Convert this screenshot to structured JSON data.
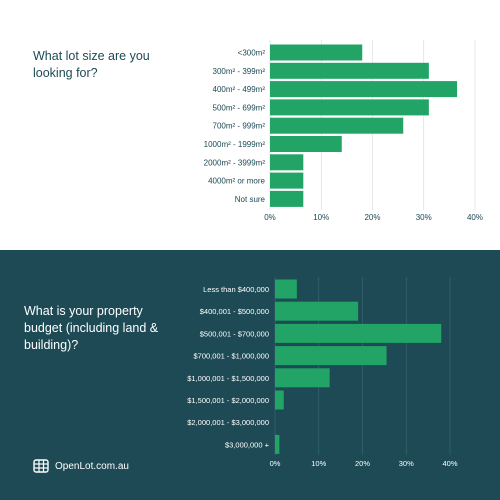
{
  "colors": {
    "bar": "#22a466",
    "dark_bg": "#1d4a55",
    "light_text": "#1d4a55",
    "grid_light": "#d8d8d8",
    "grid_dark": "#3d6a75"
  },
  "question1": "What lot size are you looking for?",
  "question2": "What is your property budget (including land & building)?",
  "brand": {
    "name": "OpenLot.com.au",
    "icon": "grid-logo-icon"
  },
  "chart_data": [
    {
      "type": "bar",
      "orientation": "horizontal",
      "title": "What lot size are you looking for?",
      "categories": [
        "<300m²",
        "300m² - 399m²",
        "400m² - 499m²",
        "500m² - 699m²",
        "700m² - 999m²",
        "1000m² - 1999m²",
        "2000m² - 3999m²",
        "4000m² or more",
        "Not sure"
      ],
      "values": [
        18,
        31,
        36.5,
        31,
        26,
        14,
        6.5,
        6.5,
        6.5
      ],
      "xlim": [
        0,
        40
      ],
      "xticks": [
        "0%",
        "10%",
        "20%",
        "30%",
        "40%"
      ],
      "grid": true
    },
    {
      "type": "bar",
      "orientation": "horizontal",
      "title": "What is your property budget (including land & building)?",
      "categories": [
        "Less than $400,000",
        "$400,001 - $500,000",
        "$500,001 - $700,000",
        "$700,001 - $1,000,000",
        "$1,000,001 - $1,500,000",
        "$1,500,001 - $2,000,000",
        "$2,000,001 - $3,000,000",
        "$3,000,000 +"
      ],
      "values": [
        5,
        19,
        38,
        25.5,
        12.5,
        2,
        0,
        1
      ],
      "xlim": [
        0,
        40
      ],
      "xticks": [
        "0%",
        "10%",
        "20%",
        "30%",
        "40%"
      ],
      "grid": true
    }
  ]
}
